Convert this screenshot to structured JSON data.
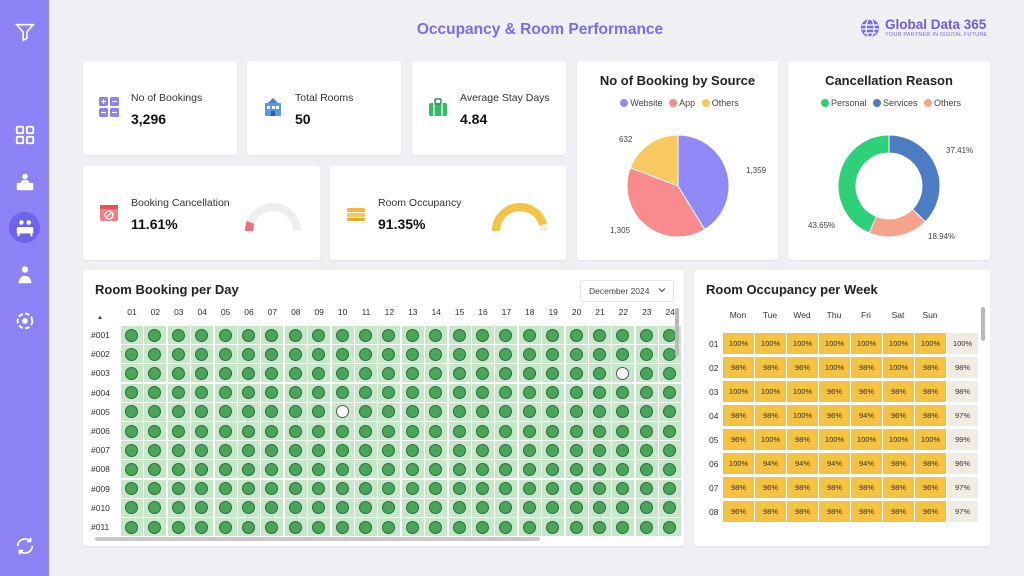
{
  "header": {
    "title": "Occupancy & Room Performance",
    "brand_name": "Global Data 365",
    "brand_tagline": "YOUR PARTNER IN DIGITAL FUTURE"
  },
  "sidebar": {
    "items": [
      {
        "icon": "filter-icon"
      },
      {
        "icon": "dashboard-grid-icon"
      },
      {
        "icon": "reception-icon"
      },
      {
        "icon": "occupancy-icon",
        "active": true
      },
      {
        "icon": "guest-icon"
      },
      {
        "icon": "performance-icon"
      },
      {
        "icon": "refresh-icon"
      }
    ]
  },
  "kpis": {
    "bookings": {
      "label": "No of Bookings",
      "value": "3,296"
    },
    "rooms": {
      "label": "Total Rooms",
      "value": "50"
    },
    "stay": {
      "label": "Average Stay Days",
      "value": "4.84"
    },
    "cancellation": {
      "label": "Booking Cancellation",
      "value": "11.61%",
      "gauge_level": 0.1161,
      "color": "#f06b78"
    },
    "occupancy": {
      "label": "Room Occupancy",
      "value": "91.35%",
      "gauge_level": 0.9135,
      "color": "#f6c244"
    }
  },
  "booking_source": {
    "title": "No of Booking by Source",
    "legend": [
      "Website",
      "App",
      "Others"
    ],
    "colors": [
      "#8f8af8",
      "#f98a8e",
      "#f8c95e"
    ],
    "values": [
      1359,
      1305,
      632
    ],
    "labels": [
      "1,359",
      "1,305",
      "632"
    ]
  },
  "cancellation_reason": {
    "title": "Cancellation Reason",
    "legend": [
      "Personal",
      "Services",
      "Others"
    ],
    "colors": [
      "#2fd07a",
      "#4b7cc4",
      "#f6a48b"
    ],
    "values": [
      43.65,
      37.41,
      18.94
    ],
    "labels": [
      "43.65%",
      "37.41%",
      "18.94%"
    ]
  },
  "room_booking": {
    "title": "Room Booking per Day",
    "month": "December 2024",
    "days": [
      "01",
      "02",
      "03",
      "04",
      "05",
      "06",
      "07",
      "08",
      "09",
      "10",
      "11",
      "12",
      "13",
      "14",
      "15",
      "16",
      "17",
      "18",
      "19",
      "20",
      "21",
      "22",
      "23",
      "24"
    ],
    "rooms": [
      "#001",
      "#002",
      "#003",
      "#004",
      "#005",
      "#006",
      "#007",
      "#008",
      "#009",
      "#010",
      "#011"
    ],
    "empty_cells": [
      [
        2,
        21
      ],
      [
        4,
        9
      ]
    ],
    "sort_icon": "▲"
  },
  "occupancy_week": {
    "title": "Room Occupancy per Week",
    "days": [
      "Mon",
      "Tue",
      "Wed",
      "Thu",
      "Fri",
      "Sat",
      "Sun"
    ],
    "weeks": [
      "01",
      "02",
      "03",
      "04",
      "05",
      "06",
      "07",
      "08"
    ],
    "values": [
      [
        "100%",
        "100%",
        "100%",
        "100%",
        "100%",
        "100%",
        "100%",
        "100%"
      ],
      [
        "98%",
        "98%",
        "96%",
        "100%",
        "98%",
        "100%",
        "98%",
        "98%"
      ],
      [
        "100%",
        "100%",
        "100%",
        "96%",
        "96%",
        "98%",
        "98%",
        "98%"
      ],
      [
        "98%",
        "98%",
        "100%",
        "96%",
        "94%",
        "96%",
        "98%",
        "97%"
      ],
      [
        "96%",
        "100%",
        "98%",
        "100%",
        "100%",
        "100%",
        "100%",
        "99%"
      ],
      [
        "100%",
        "94%",
        "94%",
        "94%",
        "94%",
        "98%",
        "98%",
        "96%"
      ],
      [
        "98%",
        "96%",
        "98%",
        "98%",
        "98%",
        "98%",
        "96%",
        "97%"
      ],
      [
        "96%",
        "98%",
        "98%",
        "98%",
        "98%",
        "98%",
        "96%",
        "97%"
      ]
    ],
    "cell_color": "#f6c244",
    "total_color": "#f1ece2"
  }
}
